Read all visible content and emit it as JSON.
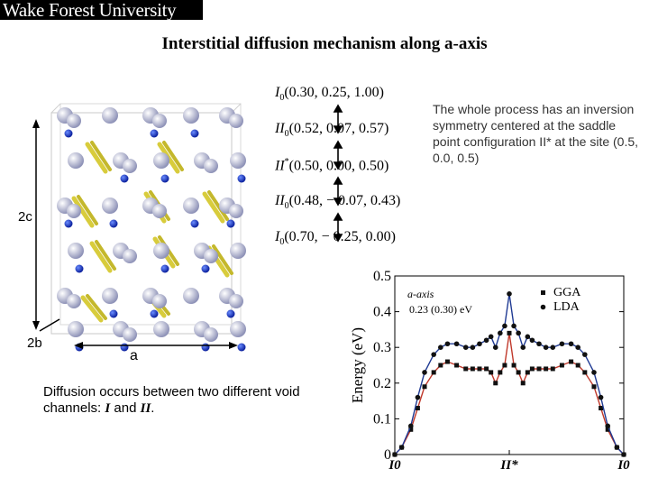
{
  "header": {
    "logo_text": "Wake Forest University",
    "title": "Interstitial diffusion mechanism along a-axis"
  },
  "configs": [
    {
      "sym": "I",
      "sub": "0",
      "sup": "",
      "coords": "(0.30,  0.25,  1.00)"
    },
    {
      "sym": "II",
      "sub": "0",
      "sup": "",
      "coords": "(0.52,  0.07,  0.57)"
    },
    {
      "sym": "II",
      "sub": "",
      "sup": "*",
      "coords": "(0.50,  0.00,  0.50)"
    },
    {
      "sym": "II",
      "sub": "0",
      "sup": "",
      "coords": "(0.48,  − 0.07,  0.43)"
    },
    {
      "sym": "I",
      "sub": "0",
      "sup": "",
      "coords": "(0.70,  − 0.25,  0.00)"
    }
  ],
  "symmetry_note": "The whole process has an inversion symmetry centered at the saddle point configuration II* at the site (0.5, 0.0, 0.5)",
  "structure": {
    "label_2c": "2c",
    "label_2b": "2b",
    "label_a": "a"
  },
  "diffusion_note": {
    "text": "Diffusion occurs between two different void channels: ",
    "ch1": "I",
    "and": " and ",
    "ch2": "II",
    "end": "."
  },
  "chart_data": {
    "type": "line",
    "title": "",
    "ylabel": "Energy (eV)",
    "xlabel": "",
    "ylim": [
      0,
      0.5
    ],
    "yticks": [
      "0",
      "0.1",
      "0.2",
      "0.3",
      "0.4",
      "0.5"
    ],
    "x_tick_labels": [
      "I0",
      "II*",
      "I0"
    ],
    "annotation_line1": "a-axis",
    "annotation_line2": "0.23 (0.30) eV",
    "legend_position": "top-right",
    "colors": {
      "GGA": "#c0392b",
      "LDA": "#1f3a93"
    },
    "series": [
      {
        "name": "GGA",
        "marker": "square",
        "x": [
          0.0,
          0.03,
          0.07,
          0.1,
          0.13,
          0.17,
          0.2,
          0.23,
          0.27,
          0.31,
          0.34,
          0.37,
          0.4,
          0.42,
          0.44,
          0.46,
          0.48,
          0.5,
          0.52,
          0.54,
          0.56,
          0.58,
          0.6,
          0.63,
          0.66,
          0.69,
          0.73,
          0.77,
          0.8,
          0.83,
          0.87,
          0.9,
          0.93,
          0.97,
          1.0
        ],
        "y": [
          0.0,
          0.02,
          0.07,
          0.13,
          0.19,
          0.23,
          0.25,
          0.26,
          0.25,
          0.24,
          0.24,
          0.24,
          0.24,
          0.23,
          0.2,
          0.23,
          0.25,
          0.34,
          0.25,
          0.23,
          0.2,
          0.23,
          0.24,
          0.24,
          0.24,
          0.24,
          0.25,
          0.26,
          0.25,
          0.23,
          0.19,
          0.13,
          0.07,
          0.02,
          0.0
        ]
      },
      {
        "name": "LDA",
        "marker": "circle",
        "x": [
          0.0,
          0.03,
          0.07,
          0.1,
          0.13,
          0.17,
          0.2,
          0.23,
          0.27,
          0.31,
          0.34,
          0.37,
          0.4,
          0.42,
          0.44,
          0.46,
          0.48,
          0.5,
          0.52,
          0.54,
          0.56,
          0.58,
          0.6,
          0.63,
          0.66,
          0.69,
          0.73,
          0.77,
          0.8,
          0.83,
          0.87,
          0.9,
          0.93,
          0.97,
          1.0
        ],
        "y": [
          0.0,
          0.02,
          0.08,
          0.16,
          0.23,
          0.28,
          0.3,
          0.31,
          0.31,
          0.3,
          0.3,
          0.31,
          0.32,
          0.33,
          0.3,
          0.34,
          0.36,
          0.45,
          0.36,
          0.34,
          0.3,
          0.33,
          0.32,
          0.31,
          0.3,
          0.3,
          0.31,
          0.31,
          0.3,
          0.28,
          0.23,
          0.16,
          0.08,
          0.02,
          0.0
        ]
      }
    ]
  }
}
